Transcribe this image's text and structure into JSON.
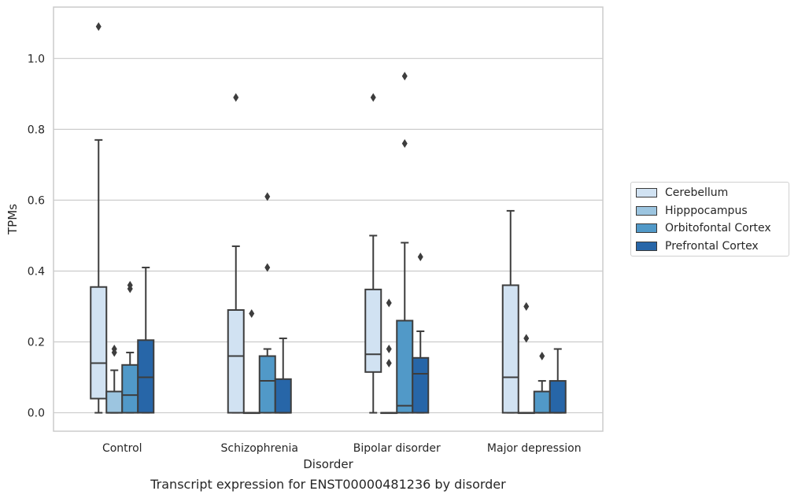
{
  "chart_data": {
    "type": "box",
    "categories": [
      "Control",
      "Schizophrenia",
      "Bipolar disorder",
      "Major depression"
    ],
    "xlabel": "Disorder",
    "ylabel": "TPMs",
    "caption": "Transcript expression for ENST00000481236 by disorder",
    "ylim": [
      -0.052,
      1.145
    ],
    "yticks": [
      "0.0",
      "0.2",
      "0.4",
      "0.6",
      "0.8",
      "1.0"
    ],
    "grid": "horizontal",
    "legend_position": "right",
    "series": [
      {
        "name": "Cerebellum",
        "color": "#d1e2f2",
        "boxes": [
          {
            "whislo": 0.0,
            "q1": 0.04,
            "med": 0.14,
            "q3": 0.355,
            "whishi": 0.77,
            "fliers": [
              1.09
            ]
          },
          {
            "whislo": 0.0,
            "q1": 0.0,
            "med": 0.16,
            "q3": 0.29,
            "whishi": 0.47,
            "fliers": [
              0.89
            ]
          },
          {
            "whislo": 0.0,
            "q1": 0.115,
            "med": 0.165,
            "q3": 0.348,
            "whishi": 0.5,
            "fliers": [
              0.89
            ]
          },
          {
            "whislo": 0.0,
            "q1": 0.0,
            "med": 0.1,
            "q3": 0.36,
            "whishi": 0.57,
            "fliers": []
          }
        ]
      },
      {
        "name": "Hipppocampus",
        "color": "#9cc5e0",
        "boxes": [
          {
            "whislo": 0.0,
            "q1": 0.0,
            "med": 0.0,
            "q3": 0.06,
            "whishi": 0.12,
            "fliers": [
              0.17,
              0.18
            ]
          },
          {
            "whislo": 0.0,
            "q1": 0.0,
            "med": 0.0,
            "q3": 0.0,
            "whishi": 0.0,
            "fliers": [
              0.28
            ]
          },
          {
            "whislo": 0.0,
            "q1": 0.0,
            "med": 0.0,
            "q3": 0.0,
            "whishi": 0.0,
            "fliers": [
              0.14,
              0.18,
              0.31
            ]
          },
          {
            "whislo": 0.0,
            "q1": 0.0,
            "med": 0.0,
            "q3": 0.0,
            "whishi": 0.0,
            "fliers": [
              0.21,
              0.3
            ]
          }
        ]
      },
      {
        "name": "Orbitofontal Cortex",
        "color": "#5199c8",
        "boxes": [
          {
            "whislo": 0.0,
            "q1": 0.0,
            "med": 0.05,
            "q3": 0.135,
            "whishi": 0.17,
            "fliers": [
              0.35,
              0.36
            ]
          },
          {
            "whislo": 0.0,
            "q1": 0.0,
            "med": 0.09,
            "q3": 0.16,
            "whishi": 0.18,
            "fliers": [
              0.41,
              0.61
            ]
          },
          {
            "whislo": 0.0,
            "q1": 0.0,
            "med": 0.02,
            "q3": 0.26,
            "whishi": 0.48,
            "fliers": [
              0.76,
              0.95
            ]
          },
          {
            "whislo": 0.0,
            "q1": 0.0,
            "med": 0.0,
            "q3": 0.06,
            "whishi": 0.09,
            "fliers": [
              0.16
            ]
          }
        ]
      },
      {
        "name": "Prefrontal Cortex",
        "color": "#2766a8",
        "boxes": [
          {
            "whislo": 0.0,
            "q1": 0.0,
            "med": 0.1,
            "q3": 0.205,
            "whishi": 0.41,
            "fliers": []
          },
          {
            "whislo": 0.0,
            "q1": 0.0,
            "med": 0.0,
            "q3": 0.095,
            "whishi": 0.21,
            "fliers": []
          },
          {
            "whislo": 0.0,
            "q1": 0.0,
            "med": 0.11,
            "q3": 0.155,
            "whishi": 0.23,
            "fliers": [
              0.44
            ]
          },
          {
            "whislo": 0.0,
            "q1": 0.0,
            "med": 0.0,
            "q3": 0.09,
            "whishi": 0.18,
            "fliers": []
          }
        ]
      }
    ]
  }
}
